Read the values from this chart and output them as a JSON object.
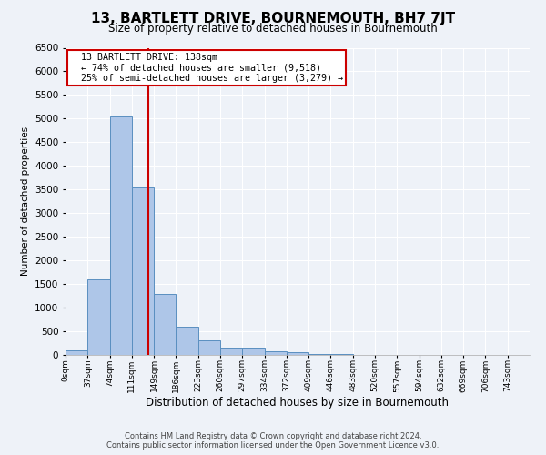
{
  "title": "13, BARTLETT DRIVE, BOURNEMOUTH, BH7 7JT",
  "subtitle": "Size of property relative to detached houses in Bournemouth",
  "xlabel": "Distribution of detached houses by size in Bournemouth",
  "ylabel": "Number of detached properties",
  "footer_line1": "Contains HM Land Registry data © Crown copyright and database right 2024.",
  "footer_line2": "Contains public sector information licensed under the Open Government Licence v3.0.",
  "bin_labels": [
    "0sqm",
    "37sqm",
    "74sqm",
    "111sqm",
    "149sqm",
    "186sqm",
    "223sqm",
    "260sqm",
    "297sqm",
    "334sqm",
    "372sqm",
    "409sqm",
    "446sqm",
    "483sqm",
    "520sqm",
    "557sqm",
    "594sqm",
    "632sqm",
    "669sqm",
    "706sqm",
    "743sqm"
  ],
  "bar_values": [
    100,
    1600,
    5050,
    3550,
    1300,
    600,
    300,
    150,
    150,
    75,
    50,
    20,
    10,
    5,
    5,
    2,
    2,
    1,
    1,
    1,
    0
  ],
  "bar_color": "#aec6e8",
  "bar_edge_color": "#5a8fc0",
  "annotation_text": "  13 BARTLETT DRIVE: 138sqm\n  ← 74% of detached houses are smaller (9,518)\n  25% of semi-detached houses are larger (3,279) →",
  "annotation_box_color": "#ffffff",
  "annotation_box_edge": "#cc0000",
  "vline_x": 138,
  "vline_color": "#cc0000",
  "bin_width": 37,
  "bin_start": 0,
  "ylim": [
    0,
    6500
  ],
  "xlim": [
    0,
    777
  ],
  "background_color": "#eef2f8",
  "grid_color": "#ffffff"
}
